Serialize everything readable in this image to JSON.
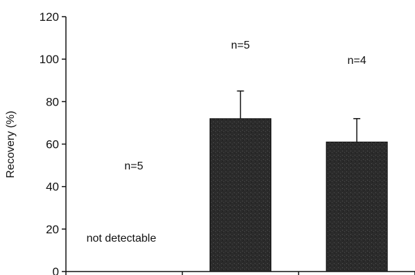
{
  "chart_data": {
    "type": "bar",
    "categories": [
      "",
      "",
      ""
    ],
    "values": [
      0,
      72,
      61
    ],
    "errors": [
      null,
      13,
      11
    ],
    "bar_color": "#2b2b2b",
    "ylabel": "Recovery (%)",
    "xlabel": "",
    "ylim": [
      0,
      120
    ],
    "yticks": [
      0,
      20,
      40,
      60,
      80,
      100,
      120
    ],
    "grid": false,
    "annotations": [
      {
        "text": "n=5",
        "category_index": 0
      },
      {
        "text": "not detectable",
        "category_index": 0
      },
      {
        "text": "n=5",
        "category_index": 1
      },
      {
        "text": "n=4",
        "category_index": 2
      }
    ]
  }
}
